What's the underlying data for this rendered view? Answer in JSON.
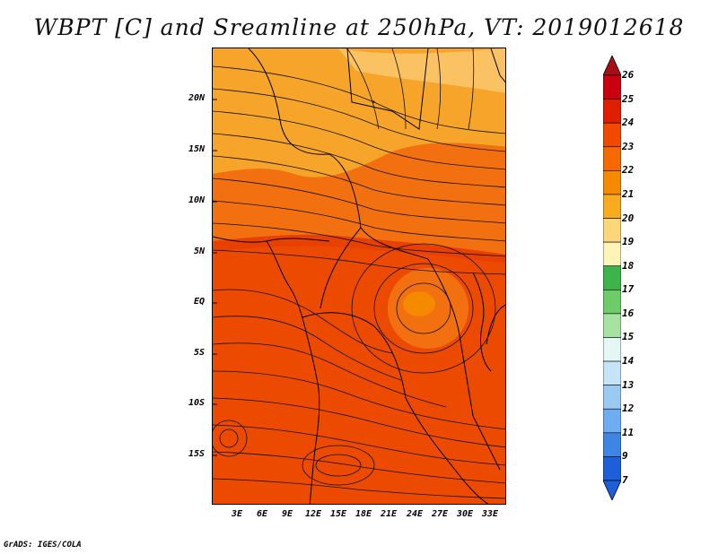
{
  "title": "WBPT [C] and Sreamline at 250hPa, VT: 2019012618",
  "credit": "GrADS: IGES/COLA",
  "map": {
    "lat_labels": [
      "20N",
      "15N",
      "10N",
      "5N",
      "EQ",
      "5S",
      "10S",
      "15S"
    ],
    "lon_labels": [
      "3E",
      "6E",
      "9E",
      "12E",
      "15E",
      "18E",
      "21E",
      "24E",
      "27E",
      "30E",
      "33E"
    ]
  },
  "colorbar": {
    "labels": [
      "26",
      "25",
      "24",
      "23",
      "22",
      "21",
      "20",
      "19",
      "18",
      "17",
      "16",
      "15",
      "14",
      "13",
      "12",
      "11",
      "9",
      "7"
    ],
    "colors": [
      "#a50f15",
      "#c8000f",
      "#e01e00",
      "#f04a00",
      "#f56a00",
      "#f58a00",
      "#f9ab20",
      "#fcd77a",
      "#fff4b8",
      "#3cb44a",
      "#6dcc68",
      "#a6e2a0",
      "#e4f7f5",
      "#c6e4f7",
      "#9ac9f2",
      "#6eaef0",
      "#3d86e6",
      "#1c5fd8",
      "#1c5fd8"
    ]
  }
}
